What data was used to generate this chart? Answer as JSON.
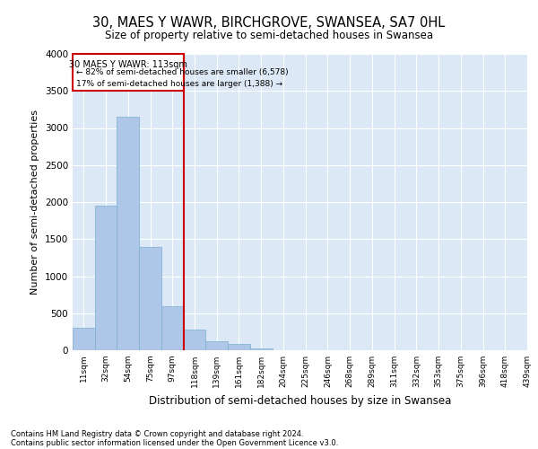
{
  "title1": "30, MAES Y WAWR, BIRCHGROVE, SWANSEA, SA7 0HL",
  "title2": "Size of property relative to semi-detached houses in Swansea",
  "xlabel": "Distribution of semi-detached houses by size in Swansea",
  "ylabel": "Number of semi-detached properties",
  "bin_labels": [
    "11sqm",
    "32sqm",
    "54sqm",
    "75sqm",
    "97sqm",
    "118sqm",
    "139sqm",
    "161sqm",
    "182sqm",
    "204sqm",
    "225sqm",
    "246sqm",
    "268sqm",
    "289sqm",
    "311sqm",
    "332sqm",
    "353sqm",
    "375sqm",
    "396sqm",
    "418sqm",
    "439sqm"
  ],
  "bar_heights": [
    300,
    1950,
    3150,
    1400,
    600,
    280,
    120,
    80,
    30,
    5,
    0,
    0,
    0,
    0,
    0,
    0,
    0,
    0,
    0,
    0
  ],
  "bar_color": "#aec6e8",
  "bar_edge_color": "#7aaed0",
  "vline_color": "#cc0000",
  "annotation_text1": "30 MAES Y WAWR: 113sqm",
  "annotation_text2": "← 82% of semi-detached houses are smaller (6,578)",
  "annotation_text3": "17% of semi-detached houses are larger (1,388) →",
  "ylim": [
    0,
    4000
  ],
  "yticks": [
    0,
    500,
    1000,
    1500,
    2000,
    2500,
    3000,
    3500,
    4000
  ],
  "footer1": "Contains HM Land Registry data © Crown copyright and database right 2024.",
  "footer2": "Contains public sector information licensed under the Open Government Licence v3.0.",
  "bg_color": "#dce8f5",
  "fig_color": "#ffffff"
}
